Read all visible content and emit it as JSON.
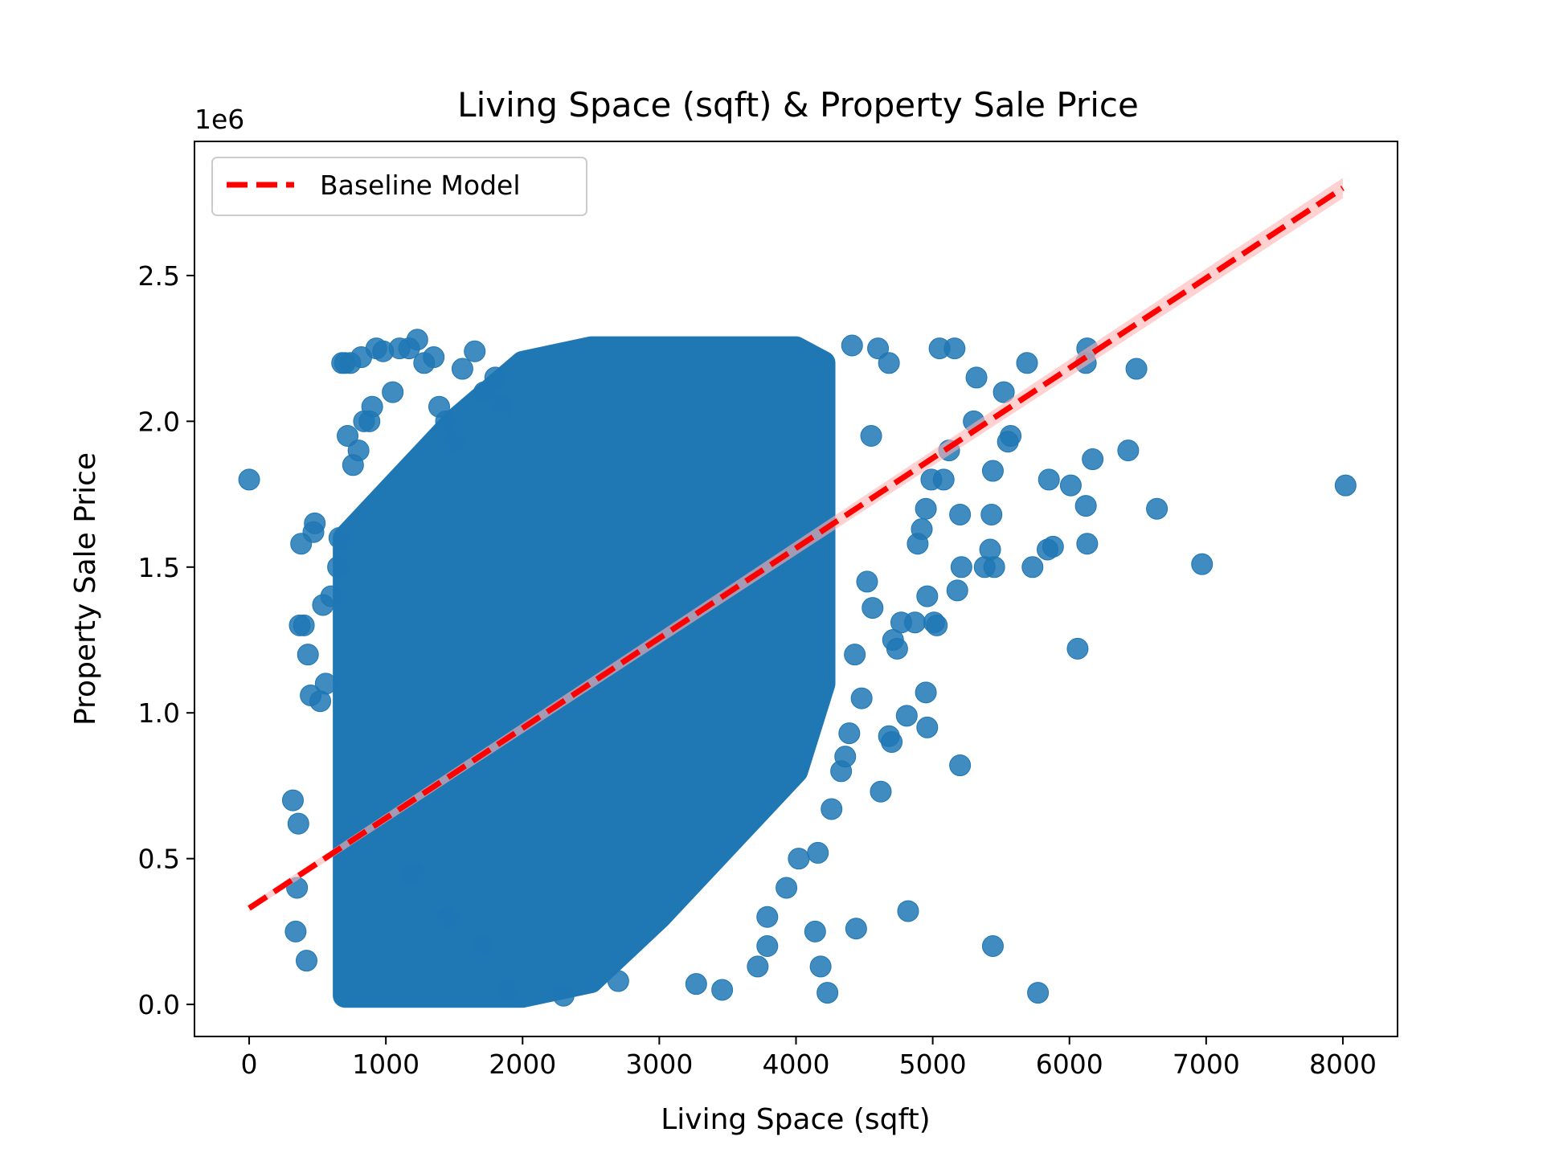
{
  "chart_data": {
    "type": "scatter",
    "title": "Living Space (sqft) & Property Sale Price",
    "xlabel": "Living Space (sqft)",
    "ylabel": "Property Sale Price",
    "y_offset_label": "1e6",
    "xlim": [
      -400,
      8400
    ],
    "ylim": [
      -0.11,
      2.96
    ],
    "x_ticks": [
      0,
      1000,
      2000,
      3000,
      4000,
      5000,
      6000,
      7000,
      8000
    ],
    "x_tick_labels": [
      "0",
      "1000",
      "2000",
      "3000",
      "4000",
      "5000",
      "6000",
      "7000",
      "8000"
    ],
    "y_ticks": [
      0.0,
      0.5,
      1.0,
      1.5,
      2.0,
      2.5
    ],
    "y_tick_labels": [
      "0.0",
      "0.5",
      "1.0",
      "1.5",
      "2.0",
      "2.5"
    ],
    "grid": false,
    "legend_position": "upper-left",
    "scatter_color": "#1f77b4",
    "line_color": "#ff0000",
    "band_color": "#ffb3b3",
    "series": [
      {
        "name": "Baseline Model",
        "type": "line",
        "style": "dashed",
        "x": [
          0,
          8000
        ],
        "y": [
          0.33,
          2.8
        ]
      },
      {
        "type": "scatter",
        "dense_region": [
          {
            "x": 700,
            "y0": 0.03,
            "y1": 1.6
          },
          {
            "x": 1000,
            "y0": 0.03,
            "y1": 1.75
          },
          {
            "x": 1500,
            "y0": 0.03,
            "y1": 2.0
          },
          {
            "x": 2000,
            "y0": 0.03,
            "y1": 2.2
          },
          {
            "x": 2500,
            "y0": 0.08,
            "y1": 2.25
          },
          {
            "x": 3000,
            "y0": 0.3,
            "y1": 2.25
          },
          {
            "x": 3500,
            "y0": 0.55,
            "y1": 2.25
          },
          {
            "x": 4000,
            "y0": 0.8,
            "y1": 2.25
          },
          {
            "x": 4200,
            "y0": 1.1,
            "y1": 2.2
          }
        ],
        "points": [
          [
            0,
            1.8
          ],
          [
            8020,
            1.78
          ],
          [
            6970,
            1.51
          ],
          [
            6640,
            1.7
          ],
          [
            6490,
            2.18
          ],
          [
            6430,
            1.9
          ],
          [
            6170,
            1.87
          ],
          [
            6130,
            1.58
          ],
          [
            6120,
            1.71
          ],
          [
            6130,
            2.25
          ],
          [
            6120,
            2.2
          ],
          [
            6060,
            1.22
          ],
          [
            6010,
            1.78
          ],
          [
            5850,
            1.8
          ],
          [
            5880,
            1.57
          ],
          [
            5840,
            1.56
          ],
          [
            5770,
            0.04
          ],
          [
            5730,
            1.5
          ],
          [
            5690,
            2.2
          ],
          [
            5570,
            1.95
          ],
          [
            5550,
            1.93
          ],
          [
            5520,
            2.1
          ],
          [
            5450,
            1.5
          ],
          [
            5440,
            1.83
          ],
          [
            5430,
            1.68
          ],
          [
            5420,
            1.56
          ],
          [
            5440,
            0.2
          ],
          [
            5380,
            1.5
          ],
          [
            5320,
            2.15
          ],
          [
            5300,
            2.0
          ],
          [
            5210,
            1.5
          ],
          [
            5200,
            1.68
          ],
          [
            5200,
            0.82
          ],
          [
            5180,
            1.42
          ],
          [
            5160,
            2.25
          ],
          [
            5120,
            1.9
          ],
          [
            5080,
            1.8
          ],
          [
            5050,
            2.25
          ],
          [
            5030,
            1.3
          ],
          [
            5010,
            1.31
          ],
          [
            4990,
            1.8
          ],
          [
            4960,
            1.4
          ],
          [
            4960,
            0.95
          ],
          [
            4950,
            1.7
          ],
          [
            4950,
            1.07
          ],
          [
            4920,
            1.63
          ],
          [
            4890,
            1.58
          ],
          [
            4870,
            1.31
          ],
          [
            4810,
            0.99
          ],
          [
            4820,
            0.32
          ],
          [
            4770,
            1.31
          ],
          [
            4740,
            1.22
          ],
          [
            4700,
            0.9
          ],
          [
            4680,
            0.92
          ],
          [
            4620,
            0.73
          ],
          [
            4520,
            1.45
          ],
          [
            4440,
            0.26
          ],
          [
            4360,
            0.85
          ],
          [
            4330,
            0.8
          ],
          [
            4260,
            0.67
          ],
          [
            4230,
            0.04
          ],
          [
            4180,
            0.13
          ],
          [
            4160,
            0.52
          ],
          [
            4140,
            0.25
          ],
          [
            4020,
            0.5
          ],
          [
            3930,
            0.4
          ],
          [
            3790,
            0.2
          ],
          [
            3790,
            0.3
          ],
          [
            3720,
            0.13
          ],
          [
            3460,
            0.05
          ],
          [
            3270,
            0.07
          ],
          [
            4560,
            1.36
          ],
          [
            4710,
            1.25
          ],
          [
            4600,
            2.25
          ],
          [
            4680,
            2.2
          ],
          [
            4410,
            2.26
          ],
          [
            4550,
            1.95
          ],
          [
            4430,
            1.2
          ],
          [
            4480,
            1.05
          ],
          [
            4390,
            0.93
          ],
          [
            350,
            0.4
          ],
          [
            320,
            0.7
          ],
          [
            340,
            0.25
          ],
          [
            360,
            0.62
          ],
          [
            380,
            1.58
          ],
          [
            370,
            1.3
          ],
          [
            400,
            1.3
          ],
          [
            420,
            0.15
          ],
          [
            430,
            1.2
          ],
          [
            450,
            1.06
          ],
          [
            470,
            1.62
          ],
          [
            480,
            1.65
          ],
          [
            520,
            1.04
          ],
          [
            540,
            1.37
          ],
          [
            560,
            1.1
          ],
          [
            600,
            1.4
          ],
          [
            650,
            1.5
          ],
          [
            660,
            1.6
          ],
          [
            680,
            2.2
          ],
          [
            700,
            2.2
          ],
          [
            720,
            1.95
          ],
          [
            740,
            2.2
          ],
          [
            760,
            1.85
          ],
          [
            800,
            1.9
          ],
          [
            820,
            2.22
          ],
          [
            840,
            2.0
          ],
          [
            880,
            2.0
          ],
          [
            900,
            2.05
          ],
          [
            930,
            2.25
          ],
          [
            980,
            2.24
          ],
          [
            1050,
            2.1
          ],
          [
            1100,
            2.25
          ],
          [
            1170,
            2.25
          ],
          [
            1230,
            2.28
          ],
          [
            1280,
            2.2
          ],
          [
            1350,
            2.22
          ],
          [
            1390,
            2.05
          ],
          [
            1440,
            2.0
          ],
          [
            1500,
            1.93
          ],
          [
            1560,
            2.18
          ],
          [
            1650,
            2.24
          ],
          [
            1720,
            2.1
          ],
          [
            1800,
            2.15
          ],
          [
            1850,
            2.05
          ],
          [
            1200,
            0.45
          ],
          [
            1450,
            0.3
          ],
          [
            1700,
            0.2
          ],
          [
            1900,
            0.05
          ],
          [
            2300,
            0.03
          ],
          [
            2700,
            0.08
          ]
        ]
      }
    ]
  }
}
